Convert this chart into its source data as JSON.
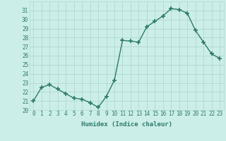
{
  "x": [
    0,
    1,
    2,
    3,
    4,
    5,
    6,
    7,
    8,
    9,
    10,
    11,
    12,
    13,
    14,
    15,
    16,
    17,
    18,
    19,
    20,
    21,
    22,
    23
  ],
  "y": [
    21.0,
    22.5,
    22.8,
    22.3,
    21.8,
    21.3,
    21.2,
    20.8,
    20.3,
    21.5,
    23.3,
    27.7,
    27.6,
    27.5,
    29.2,
    29.8,
    30.4,
    31.2,
    31.1,
    30.7,
    28.8,
    27.5,
    26.2,
    25.7
  ],
  "line_color": "#2d7a6b",
  "marker": "+",
  "markersize": 4,
  "markeredgewidth": 1.2,
  "linewidth": 1.0,
  "bg_color": "#cceee8",
  "grid_color": "#b0d8d0",
  "xlabel": "Humidex (Indice chaleur)",
  "ylim": [
    20,
    32
  ],
  "xlim": [
    -0.5,
    23.5
  ],
  "yticks": [
    20,
    21,
    22,
    23,
    24,
    25,
    26,
    27,
    28,
    29,
    30,
    31
  ],
  "xticks": [
    0,
    1,
    2,
    3,
    4,
    5,
    6,
    7,
    8,
    9,
    10,
    11,
    12,
    13,
    14,
    15,
    16,
    17,
    18,
    19,
    20,
    21,
    22,
    23
  ],
  "xtick_labels": [
    "0",
    "1",
    "2",
    "3",
    "4",
    "5",
    "6",
    "7",
    "8",
    "9",
    "10",
    "11",
    "12",
    "13",
    "14",
    "15",
    "16",
    "17",
    "18",
    "19",
    "20",
    "21",
    "22",
    "23"
  ],
  "tick_fontsize": 5.5,
  "label_fontsize": 6.5,
  "tick_color": "#2d7a6b"
}
